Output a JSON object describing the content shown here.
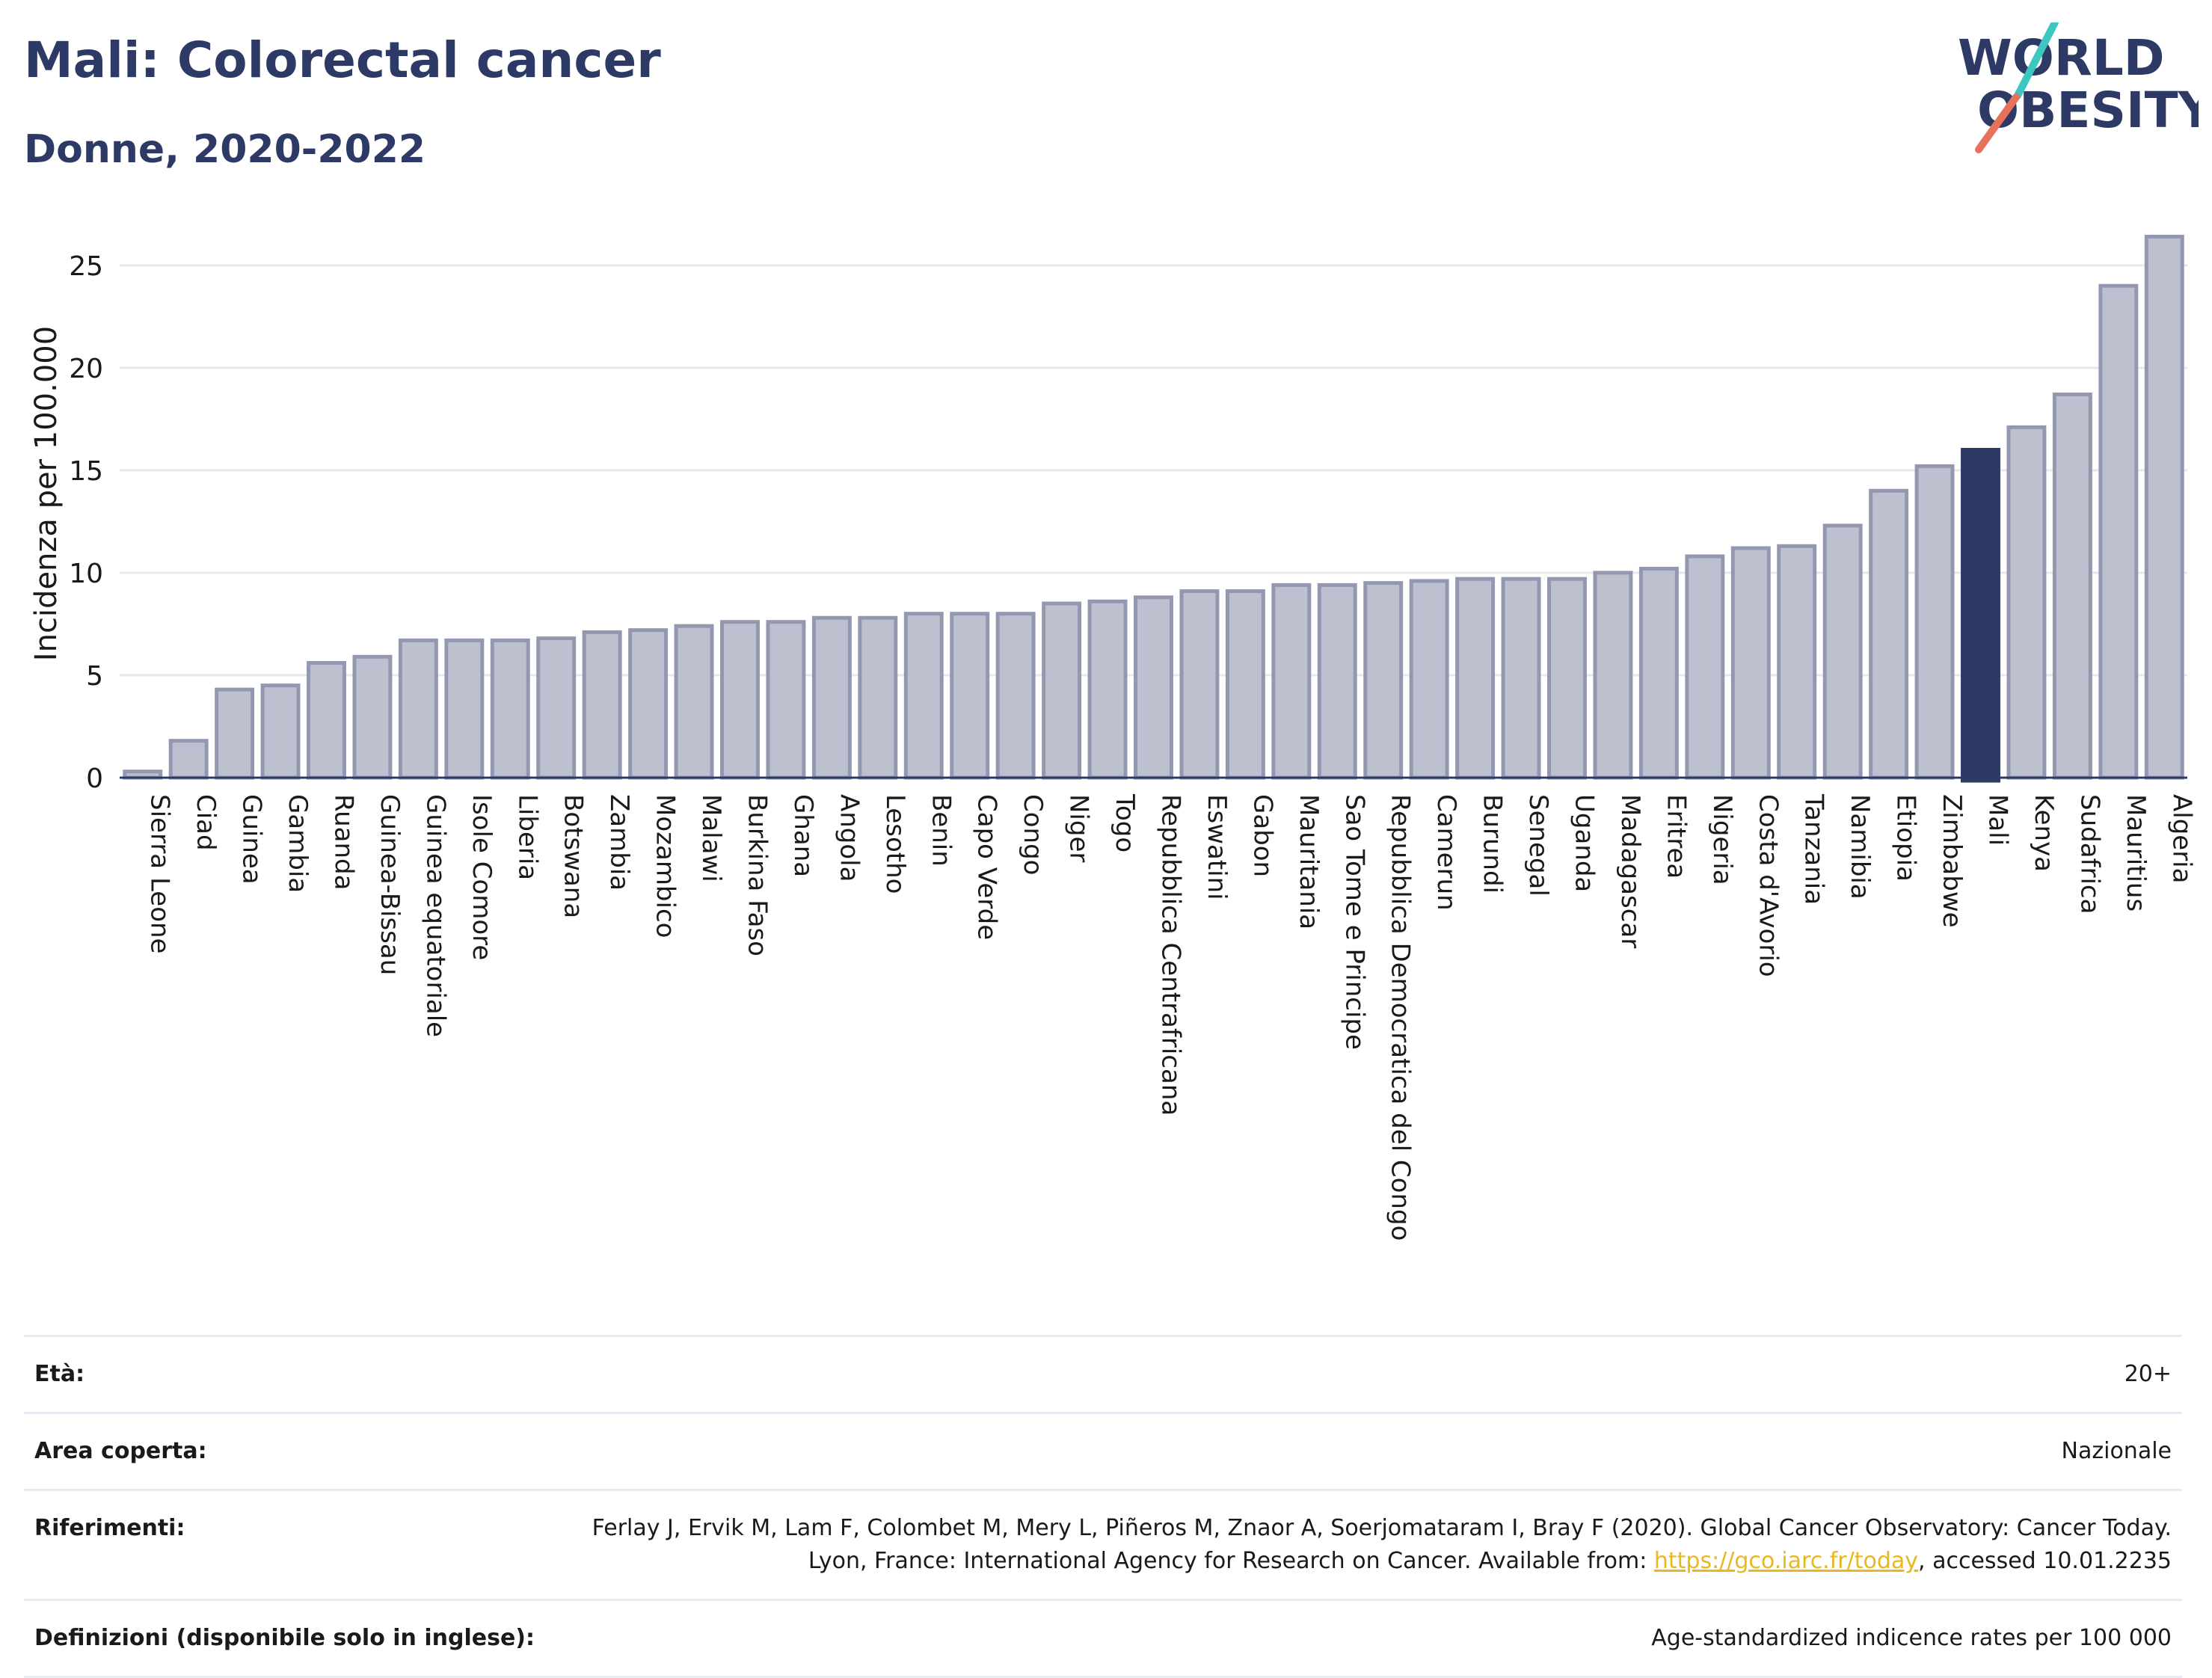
{
  "header": {
    "title": "Mali: Colorectal cancer",
    "subtitle": "Donne, 2020-2022"
  },
  "logo": {
    "line1": "WORLD",
    "line2": "OBESITY",
    "accent": "#e8715a",
    "accent2": "#3ec6c0",
    "brand": "#2d3a66"
  },
  "chart_data": {
    "type": "bar",
    "ylabel": "Incidenza per 100.000",
    "ylim": [
      0,
      27
    ],
    "yticks": [
      0,
      5,
      10,
      15,
      20,
      25
    ],
    "grid": true,
    "highlight": "Mali",
    "colors": {
      "bar": "#bdc1cf",
      "bar_border": "#9398b0",
      "highlight": "#2d3a66"
    },
    "categories": [
      "Sierra Leone",
      "Ciad",
      "Guinea",
      "Gambia",
      "Ruanda",
      "Guinea-Bissau",
      "Guinea equatoriale",
      "Isole Comore",
      "Liberia",
      "Botswana",
      "Zambia",
      "Mozambico",
      "Malawi",
      "Burkina Faso",
      "Ghana",
      "Angola",
      "Lesotho",
      "Benin",
      "Capo Verde",
      "Congo",
      "Niger",
      "Togo",
      "Repubblica Centrafricana",
      "Eswatini",
      "Gabon",
      "Mauritania",
      "Sao Tome e Principe",
      "Repubblica Democratica del Congo",
      "Camerun",
      "Burundi",
      "Senegal",
      "Uganda",
      "Madagascar",
      "Eritrea",
      "Nigeria",
      "Costa d'Avorio",
      "Tanzania",
      "Namibia",
      "Etiopia",
      "Zimbabwe",
      "Mali",
      "Kenya",
      "Sudafrica",
      "Mauritius",
      "Algeria"
    ],
    "values": [
      0.3,
      1.8,
      4.3,
      4.5,
      5.6,
      5.9,
      6.7,
      6.7,
      6.7,
      6.8,
      7.1,
      7.2,
      7.4,
      7.6,
      7.6,
      7.8,
      7.8,
      8.0,
      8.0,
      8.0,
      8.5,
      8.6,
      8.8,
      9.1,
      9.1,
      9.4,
      9.4,
      9.5,
      9.6,
      9.7,
      9.7,
      9.7,
      10.0,
      10.2,
      10.8,
      11.2,
      11.3,
      12.3,
      14.0,
      15.2,
      16.0,
      17.1,
      18.7,
      24.0,
      26.4
    ]
  },
  "meta": {
    "age_label": "Età:",
    "age_value": "20+",
    "area_label": "Area coperta:",
    "area_value": "Nazionale",
    "ref_label": "Riferimenti:",
    "ref_text_1": "Ferlay J, Ervik M, Lam F, Colombet M, Mery L, Piñeros M, Znaor A, Soerjomataram I, Bray F (2020). Global Cancer Observatory: Cancer Today. Lyon, France: International Agency for Research on Cancer. Available from: ",
    "ref_link": "https://gco.iarc.fr/today",
    "ref_text_2": ", accessed 10.01.2235",
    "def_label": "Definizioni (disponibile solo in inglese):",
    "def_value": "Age-standardized indicence rates per 100 000"
  }
}
